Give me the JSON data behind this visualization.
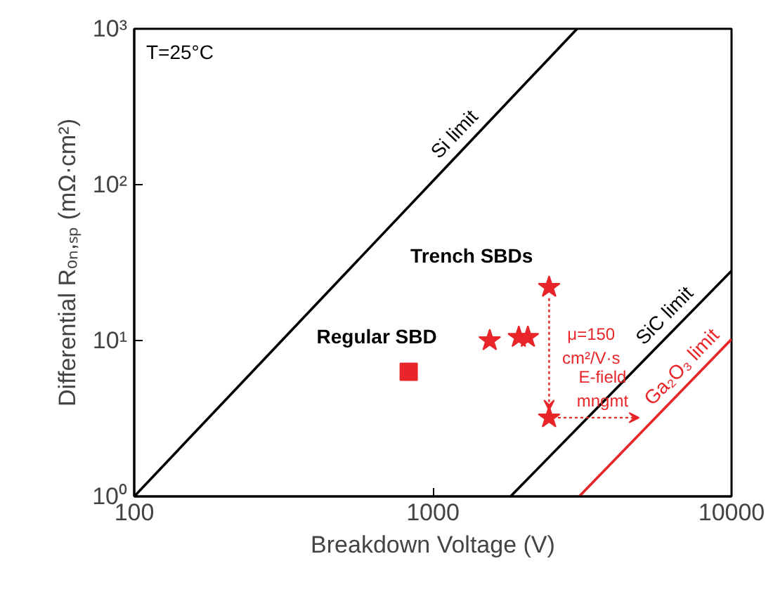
{
  "chart_data": {
    "type": "scatter",
    "xlabel": "Breakdown Voltage (V)",
    "ylabel": "Differential Rₒₙ,ₛₚ (mΩ·cm²)",
    "log": "xy",
    "grid": false,
    "xlim": [
      100,
      10000
    ],
    "ylim": [
      1,
      1000
    ],
    "xticks": [
      100,
      1000,
      10000
    ],
    "yticks": [
      {
        "value": 1,
        "label": "10⁰"
      },
      {
        "value": 10,
        "label": "10¹"
      },
      {
        "value": 100,
        "label": "10²"
      },
      {
        "value": 1000,
        "label": "10³"
      }
    ],
    "series": [
      {
        "name": "Si limit",
        "type": "line",
        "color": "#000000",
        "x": [
          100,
          3040
        ],
        "values": [
          1,
          1000
        ]
      },
      {
        "name": "SiC limit",
        "type": "line",
        "color": "#000000",
        "x": [
          1820,
          10000
        ],
        "values": [
          1,
          28
        ]
      },
      {
        "name": "Ga₂O₃ limit",
        "type": "line",
        "color": "#e8262a",
        "x": [
          3090,
          10000
        ],
        "values": [
          1,
          10.2
        ]
      },
      {
        "marker": "square",
        "color": "#e8262a",
        "x": [
          830
        ],
        "values": [
          6.3
        ]
      },
      {
        "marker": "star",
        "color": "#e8262a",
        "x": [
          1550,
          1940,
          2080,
          2450
        ],
        "values": [
          10,
          10.5,
          10.5,
          22
        ]
      },
      {
        "marker": "star",
        "color": "#e8262a",
        "x": [
          2450
        ],
        "values": [
          3.2
        ]
      }
    ],
    "annotations": [
      "T=25°C",
      "Trench SBDs",
      "Regular SBD",
      "μ=150\ncm²/V·s",
      {
        "text": "E-field\nmngmt",
        "x": 2450,
        "y": 3.2
      }
    ]
  }
}
